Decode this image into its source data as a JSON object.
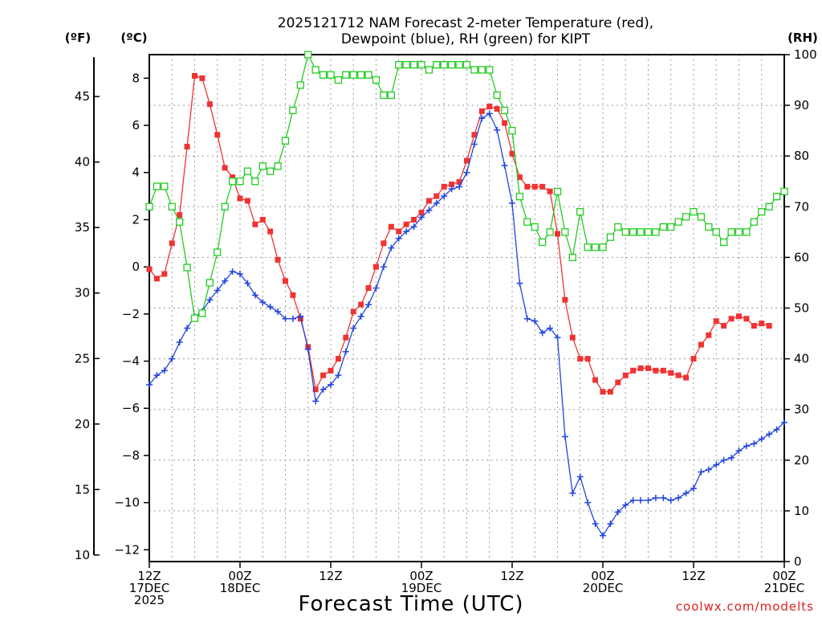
{
  "chart_data": {
    "type": "line",
    "title_lines": [
      "2025121712 NAM Forecast 2-meter Temperature (red),",
      "Dewpoint (blue), RH (green) for KIPT"
    ],
    "xlabel": "Forecast Time (UTC)",
    "credit": "coolwx.com/modelts",
    "unit_labels": {
      "fahrenheit": "(ºF)",
      "celsius": "(ºC)",
      "rh": "(RH)"
    },
    "x_range_hours": [
      0,
      84
    ],
    "x_ticks": [
      {
        "hour": 0,
        "lines": [
          "12Z",
          "17DEC",
          "2025"
        ]
      },
      {
        "hour": 12,
        "lines": [
          "00Z",
          "18DEC"
        ]
      },
      {
        "hour": 24,
        "lines": [
          "12Z"
        ]
      },
      {
        "hour": 36,
        "lines": [
          "00Z",
          "19DEC"
        ]
      },
      {
        "hour": 48,
        "lines": [
          "12Z"
        ]
      },
      {
        "hour": 60,
        "lines": [
          "00Z",
          "20DEC"
        ]
      },
      {
        "hour": 72,
        "lines": [
          "12Z"
        ]
      },
      {
        "hour": 84,
        "lines": [
          "00Z",
          "21DEC"
        ]
      }
    ],
    "celsius_axis": {
      "ylim": [
        -12.5,
        9.0
      ],
      "ticks": [
        -12,
        -10,
        -8,
        -6,
        -4,
        -2,
        0,
        2,
        4,
        6,
        8
      ]
    },
    "fahrenheit_axis": {
      "ylim": [
        10,
        48
      ],
      "ticks": [
        10,
        15,
        20,
        25,
        30,
        35,
        40,
        45
      ]
    },
    "rh_axis": {
      "ylim": [
        0,
        100
      ],
      "ticks": [
        0,
        10,
        20,
        30,
        40,
        50,
        60,
        70,
        80,
        90,
        100
      ]
    },
    "series": [
      {
        "name": "2-meter Temperature",
        "axis": "celsius",
        "color": "#ee3333",
        "marker": "filled-square",
        "points": [
          [
            0,
            -0.1
          ],
          [
            1,
            -0.5
          ],
          [
            2,
            -0.3
          ],
          [
            3,
            1.0
          ],
          [
            4,
            2.2
          ],
          [
            5,
            5.1
          ],
          [
            6,
            8.1
          ],
          [
            7,
            8.0
          ],
          [
            8,
            6.9
          ],
          [
            9,
            5.6
          ],
          [
            10,
            4.2
          ],
          [
            11,
            3.8
          ],
          [
            12,
            2.9
          ],
          [
            13,
            2.8
          ],
          [
            14,
            1.8
          ],
          [
            15,
            2.0
          ],
          [
            16,
            1.5
          ],
          [
            17,
            0.3
          ],
          [
            18,
            -0.6
          ],
          [
            19,
            -1.2
          ],
          [
            20,
            -2.2
          ],
          [
            21,
            -3.4
          ],
          [
            22,
            -5.2
          ],
          [
            23,
            -4.6
          ],
          [
            24,
            -4.4
          ],
          [
            25,
            -3.9
          ],
          [
            26,
            -3.0
          ],
          [
            27,
            -1.9
          ],
          [
            28,
            -1.6
          ],
          [
            29,
            -0.9
          ],
          [
            30,
            0.0
          ],
          [
            31,
            1.0
          ],
          [
            32,
            1.7
          ],
          [
            33,
            1.5
          ],
          [
            34,
            1.8
          ],
          [
            35,
            2.0
          ],
          [
            36,
            2.3
          ],
          [
            37,
            2.8
          ],
          [
            38,
            3.0
          ],
          [
            39,
            3.4
          ],
          [
            40,
            3.5
          ],
          [
            41,
            3.6
          ],
          [
            42,
            4.5
          ],
          [
            43,
            5.6
          ],
          [
            44,
            6.6
          ],
          [
            45,
            6.8
          ],
          [
            46,
            6.7
          ],
          [
            47,
            6.1
          ],
          [
            48,
            4.8
          ],
          [
            49,
            3.8
          ],
          [
            50,
            3.4
          ],
          [
            51,
            3.4
          ],
          [
            52,
            3.4
          ],
          [
            53,
            3.2
          ],
          [
            54,
            1.4
          ],
          [
            55,
            -1.4
          ],
          [
            56,
            -3.0
          ],
          [
            57,
            -3.9
          ],
          [
            58,
            -3.9
          ],
          [
            59,
            -4.8
          ],
          [
            60,
            -5.3
          ],
          [
            61,
            -5.3
          ],
          [
            62,
            -4.9
          ],
          [
            63,
            -4.6
          ],
          [
            64,
            -4.4
          ],
          [
            65,
            -4.3
          ],
          [
            66,
            -4.3
          ],
          [
            67,
            -4.4
          ],
          [
            68,
            -4.4
          ],
          [
            69,
            -4.5
          ],
          [
            70,
            -4.6
          ],
          [
            71,
            -4.7
          ],
          [
            72,
            -3.9
          ],
          [
            73,
            -3.3
          ],
          [
            74,
            -2.9
          ],
          [
            75,
            -2.3
          ],
          [
            76,
            -2.5
          ],
          [
            77,
            -2.2
          ],
          [
            78,
            -2.1
          ],
          [
            79,
            -2.2
          ],
          [
            80,
            -2.5
          ],
          [
            81,
            -2.4
          ],
          [
            82,
            -2.5
          ]
        ]
      },
      {
        "name": "Dewpoint",
        "axis": "celsius",
        "color": "#2244dd",
        "marker": "plus",
        "points": [
          [
            0,
            -5.0
          ],
          [
            1,
            -4.6
          ],
          [
            2,
            -4.4
          ],
          [
            3,
            -3.9
          ],
          [
            4,
            -3.2
          ],
          [
            5,
            -2.6
          ],
          [
            6,
            -2.1
          ],
          [
            7,
            -1.9
          ],
          [
            8,
            -1.4
          ],
          [
            9,
            -1.0
          ],
          [
            10,
            -0.6
          ],
          [
            11,
            -0.2
          ],
          [
            12,
            -0.3
          ],
          [
            13,
            -0.7
          ],
          [
            14,
            -1.2
          ],
          [
            15,
            -1.5
          ],
          [
            16,
            -1.7
          ],
          [
            17,
            -1.9
          ],
          [
            18,
            -2.2
          ],
          [
            19,
            -2.2
          ],
          [
            20,
            -2.1
          ],
          [
            21,
            -3.5
          ],
          [
            22,
            -5.7
          ],
          [
            23,
            -5.2
          ],
          [
            24,
            -5.0
          ],
          [
            25,
            -4.6
          ],
          [
            26,
            -3.6
          ],
          [
            27,
            -2.6
          ],
          [
            28,
            -2.1
          ],
          [
            29,
            -1.6
          ],
          [
            30,
            -0.9
          ],
          [
            31,
            0.0
          ],
          [
            32,
            0.8
          ],
          [
            33,
            1.2
          ],
          [
            34,
            1.5
          ],
          [
            35,
            1.7
          ],
          [
            36,
            2.1
          ],
          [
            37,
            2.4
          ],
          [
            38,
            2.7
          ],
          [
            39,
            3.0
          ],
          [
            40,
            3.3
          ],
          [
            41,
            3.4
          ],
          [
            42,
            4.0
          ],
          [
            43,
            5.2
          ],
          [
            44,
            6.3
          ],
          [
            45,
            6.5
          ],
          [
            46,
            5.8
          ],
          [
            47,
            4.3
          ],
          [
            48,
            2.7
          ],
          [
            49,
            -0.7
          ],
          [
            50,
            -2.2
          ],
          [
            51,
            -2.3
          ],
          [
            52,
            -2.8
          ],
          [
            53,
            -2.6
          ],
          [
            54,
            -3.0
          ],
          [
            55,
            -7.2
          ],
          [
            56,
            -9.6
          ],
          [
            57,
            -8.9
          ],
          [
            58,
            -10.0
          ],
          [
            59,
            -10.9
          ],
          [
            60,
            -11.4
          ],
          [
            61,
            -10.9
          ],
          [
            62,
            -10.4
          ],
          [
            63,
            -10.1
          ],
          [
            64,
            -9.9
          ],
          [
            65,
            -9.9
          ],
          [
            66,
            -9.9
          ],
          [
            67,
            -9.8
          ],
          [
            68,
            -9.8
          ],
          [
            69,
            -9.9
          ],
          [
            70,
            -9.8
          ],
          [
            71,
            -9.6
          ],
          [
            72,
            -9.4
          ],
          [
            73,
            -8.7
          ],
          [
            74,
            -8.6
          ],
          [
            75,
            -8.4
          ],
          [
            76,
            -8.2
          ],
          [
            77,
            -8.1
          ],
          [
            78,
            -7.8
          ],
          [
            79,
            -7.6
          ],
          [
            80,
            -7.5
          ],
          [
            81,
            -7.3
          ],
          [
            82,
            -7.1
          ],
          [
            83,
            -6.9
          ],
          [
            84,
            -6.6
          ]
        ]
      },
      {
        "name": "RH",
        "axis": "rh",
        "color": "#22cc22",
        "marker": "open-square",
        "points": [
          [
            0,
            70
          ],
          [
            1,
            74
          ],
          [
            2,
            74
          ],
          [
            3,
            70
          ],
          [
            4,
            67
          ],
          [
            5,
            58
          ],
          [
            6,
            48
          ],
          [
            7,
            49
          ],
          [
            8,
            55
          ],
          [
            9,
            61
          ],
          [
            10,
            70
          ],
          [
            11,
            75
          ],
          [
            12,
            75
          ],
          [
            13,
            77
          ],
          [
            14,
            75
          ],
          [
            15,
            78
          ],
          [
            16,
            77
          ],
          [
            17,
            78
          ],
          [
            18,
            83
          ],
          [
            19,
            89
          ],
          [
            20,
            94
          ],
          [
            21,
            100
          ],
          [
            22,
            97
          ],
          [
            23,
            96
          ],
          [
            24,
            96
          ],
          [
            25,
            95
          ],
          [
            26,
            96
          ],
          [
            27,
            96
          ],
          [
            28,
            96
          ],
          [
            29,
            96
          ],
          [
            30,
            95
          ],
          [
            31,
            92
          ],
          [
            32,
            92
          ],
          [
            33,
            98
          ],
          [
            34,
            98
          ],
          [
            35,
            98
          ],
          [
            36,
            98
          ],
          [
            37,
            97
          ],
          [
            38,
            98
          ],
          [
            39,
            98
          ],
          [
            40,
            98
          ],
          [
            41,
            98
          ],
          [
            42,
            98
          ],
          [
            43,
            97
          ],
          [
            44,
            97
          ],
          [
            45,
            97
          ],
          [
            46,
            92
          ],
          [
            47,
            89
          ],
          [
            48,
            85
          ],
          [
            49,
            72
          ],
          [
            50,
            67
          ],
          [
            51,
            66
          ],
          [
            52,
            63
          ],
          [
            53,
            65
          ],
          [
            54,
            73
          ],
          [
            55,
            65
          ],
          [
            56,
            60
          ],
          [
            57,
            69
          ],
          [
            58,
            62
          ],
          [
            59,
            62
          ],
          [
            60,
            62
          ],
          [
            61,
            64
          ],
          [
            62,
            66
          ],
          [
            63,
            65
          ],
          [
            64,
            65
          ],
          [
            65,
            65
          ],
          [
            66,
            65
          ],
          [
            67,
            65
          ],
          [
            68,
            66
          ],
          [
            69,
            66
          ],
          [
            70,
            67
          ],
          [
            71,
            68
          ],
          [
            72,
            69
          ],
          [
            73,
            68
          ],
          [
            74,
            66
          ],
          [
            75,
            65
          ],
          [
            76,
            63
          ],
          [
            77,
            65
          ],
          [
            78,
            65
          ],
          [
            79,
            65
          ],
          [
            80,
            67
          ],
          [
            81,
            69
          ],
          [
            82,
            70
          ],
          [
            83,
            72
          ],
          [
            84,
            73
          ]
        ]
      }
    ]
  }
}
